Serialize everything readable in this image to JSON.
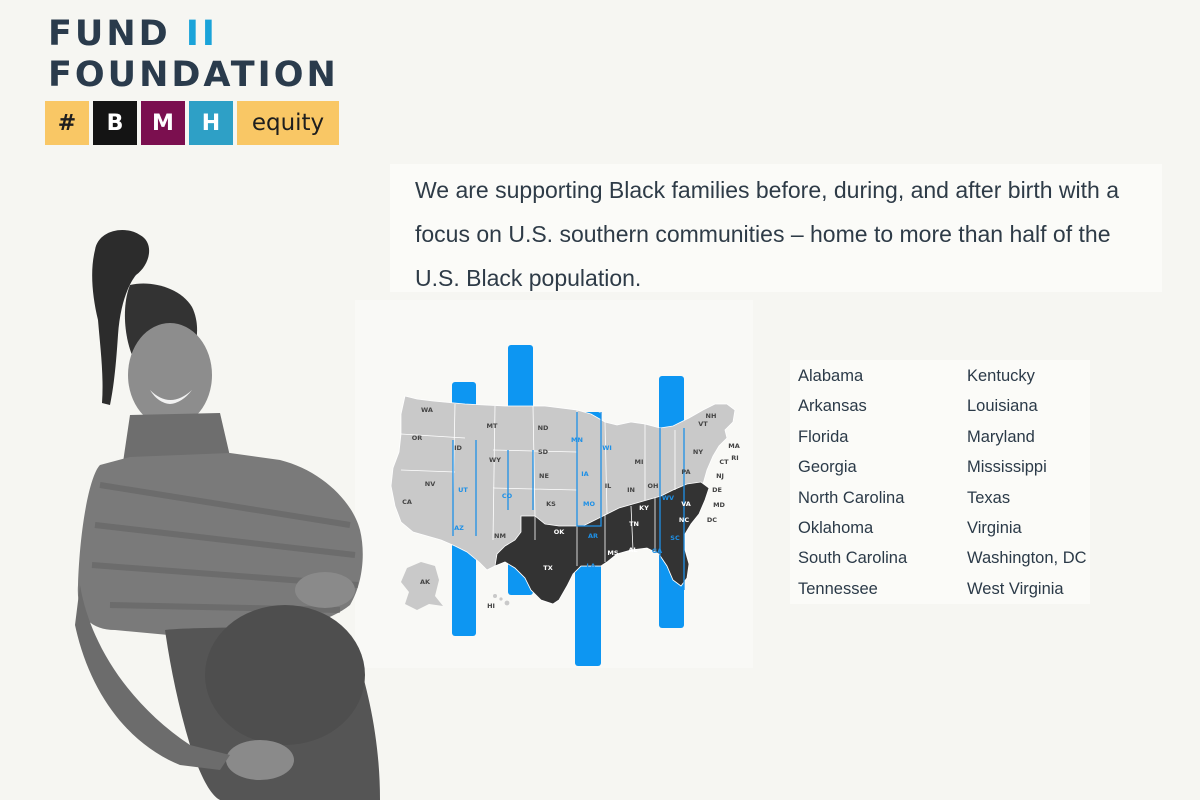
{
  "logo": {
    "line1_word": "FUND",
    "line1_mark": "II",
    "line2": "FOUNDATION",
    "tags": [
      "#",
      "B",
      "M",
      "H",
      "equity"
    ]
  },
  "intro": {
    "text": "We are supporting Black families before, during, and after birth with a focus on U.S. southern communities – home to more than half of the U.S. Black population."
  },
  "map": {
    "colors": {
      "light_state": "#c9c9c9",
      "dark_state": "#333333",
      "accent_blue": "#1e90e6"
    },
    "state_labels": [
      "WA",
      "OR",
      "CA",
      "NV",
      "ID",
      "MT",
      "WY",
      "UT",
      "AZ",
      "CO",
      "NM",
      "ND",
      "SD",
      "NE",
      "KS",
      "OK",
      "TX",
      "MN",
      "IA",
      "MO",
      "AR",
      "LA",
      "WI",
      "IL",
      "MI",
      "IN",
      "OH",
      "KY",
      "TN",
      "MS",
      "AL",
      "GA",
      "FL",
      "SC",
      "NC",
      "VA",
      "WV",
      "PA",
      "NY",
      "VT",
      "NH",
      "MA",
      "RI",
      "CT",
      "NJ",
      "DE",
      "MD",
      "DC",
      "AK",
      "HI"
    ]
  },
  "states_list": {
    "column1": [
      "Alabama",
      "Arkansas",
      "Florida",
      "Georgia",
      "North Carolina",
      "Oklahoma",
      "South Carolina",
      "Tennessee"
    ],
    "column2": [
      "Kentucky",
      "Louisiana",
      "Maryland",
      "Mississippi",
      "Texas",
      "Virginia",
      "Washington, DC",
      "West Virginia"
    ]
  },
  "photo": {
    "description_icon": "pregnant-woman-photo"
  }
}
